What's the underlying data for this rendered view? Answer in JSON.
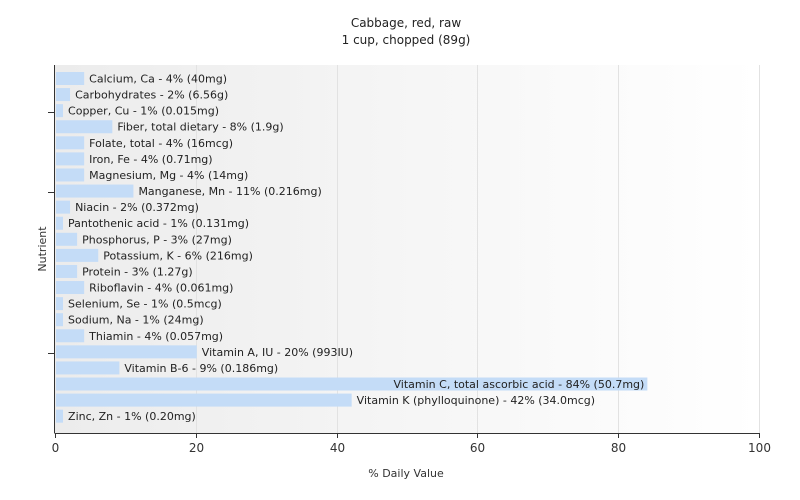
{
  "chart_data": {
    "type": "bar",
    "orientation": "horizontal",
    "title": "Cabbage, red, raw",
    "subtitle": "1 cup, chopped (89g)",
    "xlabel": "% Daily Value",
    "ylabel": "Nutrient",
    "xlim": [
      0,
      100
    ],
    "xticks": [
      0,
      20,
      40,
      60,
      80,
      100
    ],
    "grid": true,
    "bar_color": "#c4dcf7",
    "categories": [
      "Calcium, Ca - 4% (40mg)",
      "Carbohydrates - 2% (6.56g)",
      "Copper, Cu - 1% (0.015mg)",
      "Fiber, total dietary - 8% (1.9g)",
      "Folate, total - 4% (16mcg)",
      "Iron, Fe - 4% (0.71mg)",
      "Magnesium, Mg - 4% (14mg)",
      "Manganese, Mn - 11% (0.216mg)",
      "Niacin - 2% (0.372mg)",
      "Pantothenic acid - 1% (0.131mg)",
      "Phosphorus, P - 3% (27mg)",
      "Potassium, K - 6% (216mg)",
      "Protein - 3% (1.27g)",
      "Riboflavin - 4% (0.061mg)",
      "Selenium, Se - 1% (0.5mcg)",
      "Sodium, Na - 1% (24mg)",
      "Thiamin - 4% (0.057mg)",
      "Vitamin A, IU - 20% (993IU)",
      "Vitamin B-6 - 9% (0.186mg)",
      "Vitamin C, total ascorbic acid - 84% (50.7mg)",
      "Vitamin K (phylloquinone) - 42% (34.0mcg)",
      "Zinc, Zn - 1% (0.20mg)"
    ],
    "values": [
      4,
      2,
      1,
      8,
      4,
      4,
      4,
      11,
      2,
      1,
      3,
      6,
      3,
      4,
      1,
      1,
      4,
      20,
      9,
      84,
      42,
      1
    ]
  }
}
